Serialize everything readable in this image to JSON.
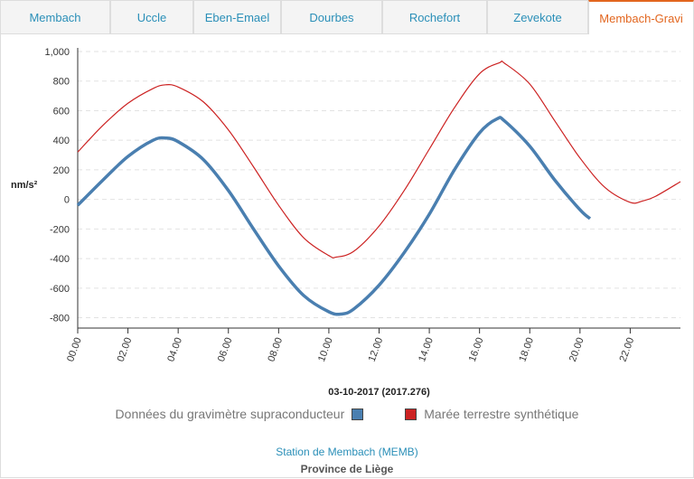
{
  "tabs": [
    {
      "label": "Membach",
      "active": false
    },
    {
      "label": "Uccle",
      "active": false
    },
    {
      "label": "Eben-Emael",
      "active": false
    },
    {
      "label": "Dourbes",
      "active": false
    },
    {
      "label": "Rochefort",
      "active": false
    },
    {
      "label": "Zevekote",
      "active": false
    },
    {
      "label": "Membach-Gravi",
      "active": true
    }
  ],
  "chart_data": {
    "type": "line",
    "title": "",
    "xlabel": "03-10-2017 (2017.276)",
    "ylabel": "nm/s²",
    "xlim": [
      0,
      24
    ],
    "ylim": [
      -870,
      1000
    ],
    "yticks": [
      -800,
      -600,
      -400,
      -200,
      0,
      200,
      400,
      600,
      800,
      1000
    ],
    "ytick_labels": [
      "-800",
      "-600",
      "-400",
      "-200",
      "0",
      "200",
      "400",
      "600",
      "800",
      "1,000"
    ],
    "xticks": [
      0,
      2,
      4,
      6,
      8,
      10,
      12,
      14,
      16,
      18,
      20,
      22
    ],
    "xtick_labels": [
      "00.00",
      "02.00",
      "04.00",
      "06.00",
      "08.00",
      "10.00",
      "12.00",
      "14.00",
      "16.00",
      "18.00",
      "20.00",
      "22.00"
    ],
    "grid": true,
    "legend_position": "bottom",
    "series": [
      {
        "name": "Données du gravimètre supraconducteur",
        "color": "#4a7fb0",
        "x": [
          0,
          1,
          2,
          3,
          3.5,
          4,
          5,
          6,
          7,
          8,
          9,
          10,
          10.5,
          11,
          12,
          13,
          14,
          15,
          16,
          16.7,
          17,
          18,
          19,
          20,
          20.4
        ],
        "y": [
          -40,
          130,
          290,
          400,
          415,
          390,
          270,
          60,
          -200,
          -450,
          -650,
          -760,
          -775,
          -740,
          -580,
          -360,
          -100,
          200,
          450,
          545,
          530,
          360,
          130,
          -70,
          -130
        ]
      },
      {
        "name": "Marée terrestre synthétique",
        "color": "#cc2222",
        "x": [
          0,
          1,
          2,
          3,
          3.5,
          4,
          5,
          6,
          7,
          8,
          9,
          10,
          10.3,
          11,
          12,
          13,
          14,
          15,
          16,
          16.8,
          17,
          18,
          19,
          20,
          21,
          22,
          22.5,
          23,
          24
        ],
        "y": [
          320,
          500,
          650,
          750,
          775,
          760,
          660,
          470,
          220,
          -40,
          -260,
          -380,
          -390,
          -350,
          -180,
          60,
          340,
          620,
          850,
          925,
          920,
          780,
          530,
          280,
          80,
          -20,
          -10,
          20,
          120
        ]
      }
    ]
  },
  "footer": {
    "station": "Station de Membach (MEMB)",
    "province": "Province de Liège"
  }
}
